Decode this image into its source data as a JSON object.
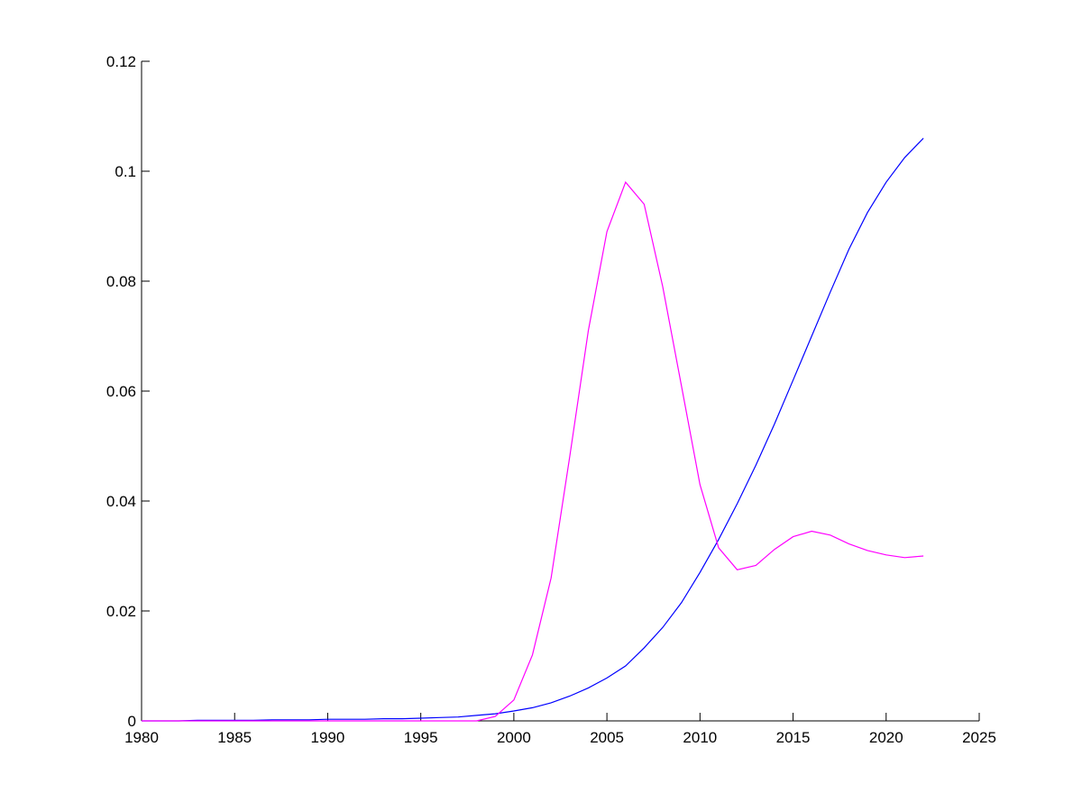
{
  "chart_data": {
    "type": "line",
    "title": "",
    "xlabel": "",
    "ylabel": "",
    "xlim": [
      1980,
      2025
    ],
    "ylim": [
      0,
      0.12
    ],
    "grid": false,
    "xticks": [
      "1980",
      "1985",
      "1990",
      "1995",
      "2000",
      "2005",
      "2010",
      "2015",
      "2020",
      "2025"
    ],
    "yticks": [
      "0",
      "0.02",
      "0.04",
      "0.06",
      "0.08",
      "0.1",
      "0.12"
    ],
    "x": [
      1980,
      1981,
      1982,
      1983,
      1984,
      1985,
      1986,
      1987,
      1988,
      1989,
      1990,
      1991,
      1992,
      1993,
      1994,
      1995,
      1996,
      1997,
      1998,
      1999,
      2000,
      2001,
      2002,
      2003,
      2004,
      2005,
      2006,
      2007,
      2008,
      2009,
      2010,
      2011,
      2012,
      2013,
      2014,
      2015,
      2016,
      2017,
      2018,
      2019,
      2020,
      2021,
      2022
    ],
    "series": [
      {
        "color": "#0000ff",
        "values": [
          0,
          0,
          0,
          0.0001,
          0.0001,
          0.0001,
          0.0001,
          0.0002,
          0.0002,
          0.0002,
          0.0003,
          0.0003,
          0.0003,
          0.0004,
          0.0004,
          0.0005,
          0.0006,
          0.0007,
          0.001,
          0.0013,
          0.0018,
          0.0024,
          0.0033,
          0.0045,
          0.006,
          0.0078,
          0.01,
          0.0133,
          0.017,
          0.0215,
          0.027,
          0.033,
          0.0395,
          0.0465,
          0.054,
          0.062,
          0.07,
          0.078,
          0.0858,
          0.0925,
          0.098,
          0.1025,
          0.106
        ]
      },
      {
        "color": "#ff00ff",
        "values": [
          0,
          0,
          0,
          0,
          0,
          0,
          0,
          0,
          0,
          0,
          0,
          0,
          0,
          0,
          0,
          0,
          0,
          0,
          0,
          0.0008,
          0.0038,
          0.012,
          0.026,
          0.048,
          0.071,
          0.089,
          0.098,
          0.094,
          0.079,
          0.061,
          0.043,
          0.0315,
          0.0275,
          0.0283,
          0.0312,
          0.0335,
          0.0345,
          0.0338,
          0.0322,
          0.031,
          0.0302,
          0.0297,
          0.03
        ]
      }
    ]
  }
}
